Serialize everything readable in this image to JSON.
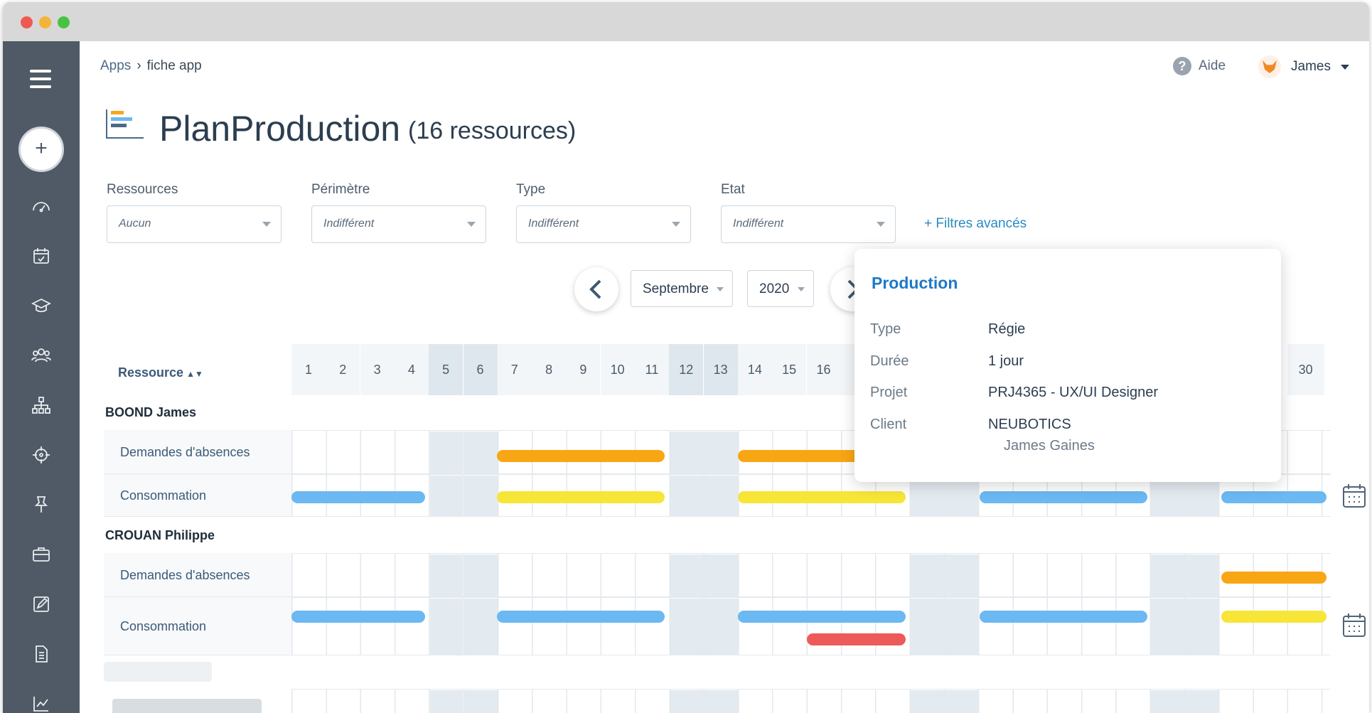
{
  "breadcrumb": {
    "root": "Apps",
    "current": "fiche app"
  },
  "header": {
    "help_label": "Aide",
    "user_name": "James"
  },
  "page": {
    "title": "PlanProduction",
    "subtitle": "(16 ressources)"
  },
  "filters": [
    {
      "label": "Ressources",
      "value": "Aucun"
    },
    {
      "label": "Périmètre",
      "value": "Indifférent"
    },
    {
      "label": "Type",
      "value": "Indifférent"
    },
    {
      "label": "Etat",
      "value": "Indifférent"
    }
  ],
  "advanced_filters_label": "+ Filtres avancés",
  "period": {
    "month": "Septembre",
    "year": "2020"
  },
  "grid": {
    "resource_header": "Ressource",
    "sort_icon": "sort-icon",
    "days_visible": [
      "1",
      "2",
      "3",
      "4",
      "5",
      "6",
      "7",
      "8",
      "9",
      "10",
      "11",
      "12",
      "13",
      "14",
      "15",
      "16",
      "1"
    ],
    "last_day": "30",
    "groups": [
      {
        "name": "BOOND James",
        "rows": [
          "Demandes d'absences",
          "Consommation"
        ]
      },
      {
        "name": "CROUAN Philippe",
        "rows": [
          "Demandes d'absences",
          "Consommation"
        ]
      }
    ]
  },
  "popover": {
    "title": "Production",
    "fields": [
      {
        "key": "Type",
        "value": "Régie"
      },
      {
        "key": "Durée",
        "value": "1 jour"
      },
      {
        "key": "Projet",
        "value": "PRJ4365 - UX/UI Designer"
      },
      {
        "key": "Client",
        "value": "NEUBOTICS",
        "value2": "James Gaines"
      }
    ]
  },
  "colors": {
    "sidebar": "#4f5a66",
    "accent": "#1f78c8",
    "bar_blue": "#6bb8f2",
    "bar_orange": "#f9a614",
    "bar_yellow": "#f7e537",
    "bar_red": "#ec5a59"
  },
  "sidebar_icons": [
    "menu-icon",
    "add-icon",
    "dashboard-icon",
    "calendar-icon",
    "graduation-icon",
    "users-icon",
    "org-chart-icon",
    "target-icon",
    "pin-icon",
    "briefcase-icon",
    "edit-icon",
    "document-icon",
    "chart-icon"
  ]
}
